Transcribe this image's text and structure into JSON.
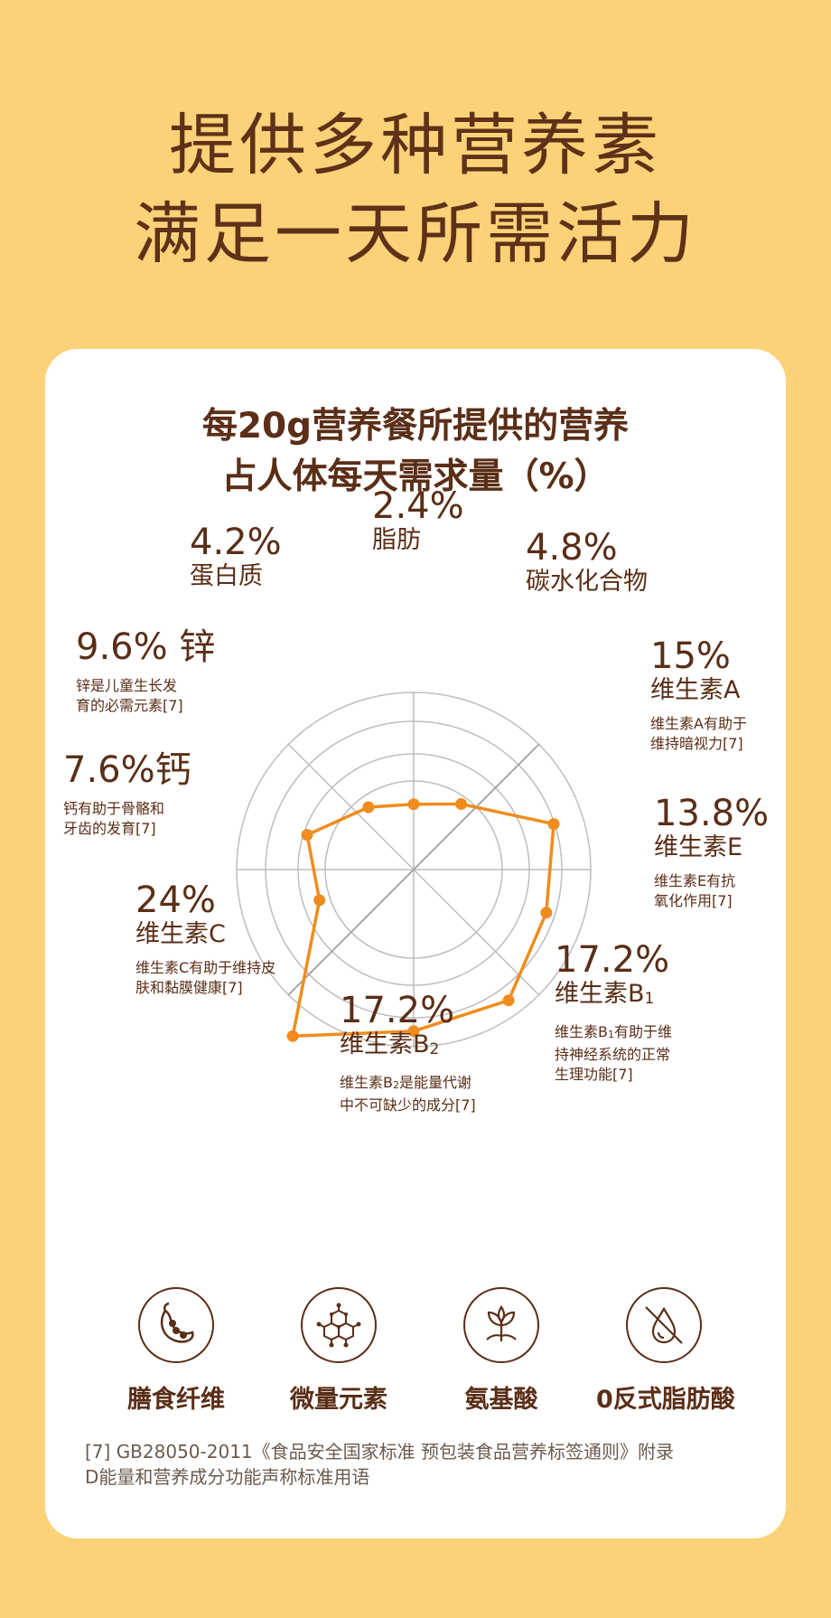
{
  "headline": {
    "line1": "提供多种营养素",
    "line2": "满足一天所需活力"
  },
  "card": {
    "title_line1": "每20g营养餐所提供的营养",
    "title_line2": "占人体每天需求量（%）"
  },
  "labels": {
    "fat": {
      "pct": "2.4%",
      "name": "脂肪"
    },
    "carb": {
      "pct": "4.8%",
      "name": "碳水化合物"
    },
    "va": {
      "pct": "15%",
      "name": "维生素A",
      "desc1": "维生素A有助于",
      "desc2": "维持暗视力[7]"
    },
    "ve": {
      "pct": "13.8%",
      "name": "维生素E",
      "desc1": "维生素E有抗",
      "desc2": "氧化作用[7]"
    },
    "vb1": {
      "pct": "17.2%",
      "name": "维生素B",
      "sub": "1",
      "desc1a": "维生素B",
      "desc1sub": "1",
      "desc1b": "有助于维",
      "desc2": "持神经系统的正常",
      "desc3": "生理功能[7]"
    },
    "vb2": {
      "pct": "17.2%",
      "name": "维生素B",
      "sub": "2",
      "desc1a": "维生素B",
      "desc1sub": "2",
      "desc1b": "是能量代谢",
      "desc2": "中不可缺少的成分[7]"
    },
    "vc": {
      "pct": "24%",
      "name": "维生素C",
      "desc1": "维生素C有助于维持皮",
      "desc2": "肤和黏膜健康[7]"
    },
    "ca": {
      "pct": "7.6%",
      "name": "钙",
      "desc1": "钙有助于骨骼和",
      "desc2": "牙齿的发育[7]"
    },
    "zn": {
      "pct": "9.6%",
      "name": "锌",
      "desc1": "锌是儿童生长发",
      "desc2": "育的必需元素[7]"
    },
    "protein": {
      "pct": "4.2%",
      "name": "蛋白质"
    }
  },
  "chart_data": {
    "type": "radar",
    "title": "每20g营养餐所提供的营养占人体每天需求量（%）",
    "categories": [
      "脂肪",
      "碳水化合物",
      "维生素A",
      "维生素E",
      "维生素B1",
      "维生素B2",
      "维生素C",
      "钙",
      "锌",
      "蛋白质"
    ],
    "values": [
      2.4,
      4.8,
      15,
      13.8,
      17.2,
      17.2,
      24,
      7.6,
      9.6,
      4.2
    ],
    "unit": "%",
    "rings": 4,
    "grid": true,
    "series_color": "#f08c1e"
  },
  "features": [
    {
      "label": "膳食纤维",
      "icon": "pea-pod-icon"
    },
    {
      "label": "微量元素",
      "icon": "molecule-icon"
    },
    {
      "label": "氨基酸",
      "icon": "leaf-plant-icon"
    },
    {
      "label": "0反式脂肪酸",
      "icon": "no-oil-drop-icon"
    }
  ],
  "footnote": {
    "line1": "[7] GB28050-2011《食品安全国家标准 预包装食品营养标签通则》附录",
    "line2": "D能量和营养成分功能声称标准用语"
  },
  "colors": {
    "background": "#fcd279",
    "brown": "#5a2e17",
    "orange": "#f08c1e",
    "grid": "#bdbdbd"
  }
}
